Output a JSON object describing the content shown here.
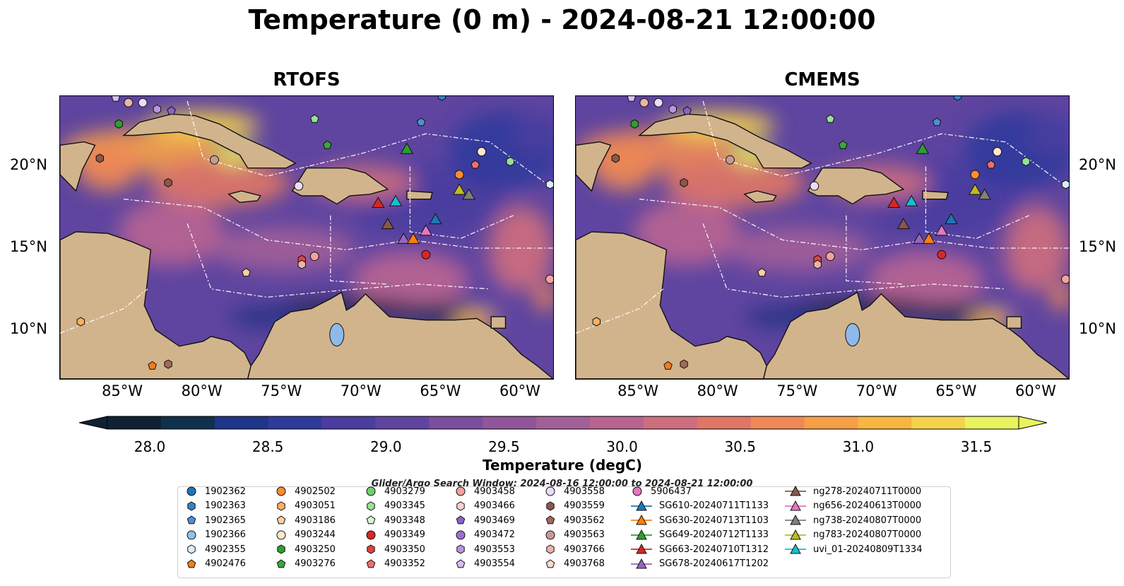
{
  "figure": {
    "title": "Temperature (0 m) - 2024-08-21 12:00:00",
    "search_window": "Glider/Argo Search Window: 2024-08-16 12:00:00 to 2024-08-21 12:00:00"
  },
  "colors": {
    "land": "#d2b48c",
    "lake": "#8fb9e8",
    "colormap": [
      "#0f2133",
      "#10304d",
      "#1f3588",
      "#2f3a9c",
      "#4a3d9f",
      "#5f45a0",
      "#7a4e9e",
      "#91559a",
      "#a25f98",
      "#b86491",
      "#cd6e7e",
      "#df7666",
      "#ee8856",
      "#f59f47",
      "#f6b641",
      "#f4d34c",
      "#e9f35f"
    ]
  },
  "chart_data": [
    {
      "type": "heatmap",
      "title": "RTOFS",
      "x_ticks": [
        "85°W",
        "80°W",
        "75°W",
        "70°W",
        "65°W",
        "60°W"
      ],
      "x_tick_values": [
        -85,
        -80,
        -75,
        -70,
        -65,
        -60
      ],
      "y_ticks": [
        "20°N",
        "15°N",
        "10°N"
      ],
      "y_tick_values": [
        20,
        15,
        10
      ],
      "xlim": [
        -89,
        -58
      ],
      "ylim": [
        7,
        24.3
      ]
    },
    {
      "type": "heatmap",
      "title": "CMEMS",
      "x_ticks": [
        "85°W",
        "80°W",
        "75°W",
        "70°W",
        "65°W",
        "60°W"
      ],
      "x_tick_values": [
        -85,
        -80,
        -75,
        -70,
        -65,
        -60
      ],
      "y_ticks": [
        "20°N",
        "15°N",
        "10°N"
      ],
      "y_tick_values": [
        20,
        15,
        10
      ],
      "xlim": [
        -89,
        -58
      ],
      "ylim": [
        7,
        24.3
      ]
    }
  ],
  "colorbar": {
    "label": "Temperature (degC)",
    "ticks": [
      "28.0",
      "28.5",
      "29.0",
      "29.5",
      "30.0",
      "30.5",
      "31.0",
      "31.5"
    ],
    "tick_values": [
      28.0,
      28.5,
      29.0,
      29.5,
      30.0,
      30.5,
      31.0,
      31.5
    ],
    "range": [
      28.0,
      31.5
    ]
  },
  "platforms": [
    {
      "name": "1902362",
      "marker": "circle",
      "color": "#1f77b4"
    },
    {
      "name": "1902363",
      "marker": "hexagon",
      "color": "#3d7fc4"
    },
    {
      "name": "1902365",
      "marker": "pentagon",
      "color": "#4f8fd8"
    },
    {
      "name": "1902366",
      "marker": "circle",
      "color": "#8fc1ea"
    },
    {
      "name": "4902355",
      "marker": "hexagon",
      "color": "#d9eefc"
    },
    {
      "name": "4902476",
      "marker": "pentagon",
      "color": "#f07f1a"
    },
    {
      "name": "4902502",
      "marker": "circle",
      "color": "#ff8c32"
    },
    {
      "name": "4903051",
      "marker": "hexagon",
      "color": "#ffae5e"
    },
    {
      "name": "4903186",
      "marker": "pentagon",
      "color": "#ffd0a0"
    },
    {
      "name": "4903244",
      "marker": "circle",
      "color": "#ffe6cc"
    },
    {
      "name": "4903250",
      "marker": "hexagon",
      "color": "#2ca02c"
    },
    {
      "name": "4903276",
      "marker": "pentagon",
      "color": "#38a838"
    },
    {
      "name": "4903279",
      "marker": "circle",
      "color": "#6fcf6f"
    },
    {
      "name": "4903345",
      "marker": "hexagon",
      "color": "#97e197"
    },
    {
      "name": "4903348",
      "marker": "pentagon",
      "color": "#d8f6cf"
    },
    {
      "name": "4903349",
      "marker": "circle",
      "color": "#d62728"
    },
    {
      "name": "4903350",
      "marker": "hexagon",
      "color": "#e0413f"
    },
    {
      "name": "4903352",
      "marker": "pentagon",
      "color": "#ef6f6c"
    },
    {
      "name": "4903458",
      "marker": "circle",
      "color": "#f6a0a0"
    },
    {
      "name": "4903466",
      "marker": "hexagon",
      "color": "#fcd0d0"
    },
    {
      "name": "4903469",
      "marker": "pentagon",
      "color": "#8a63c8"
    },
    {
      "name": "4903472",
      "marker": "circle",
      "color": "#9c6fd2"
    },
    {
      "name": "4903553",
      "marker": "hexagon",
      "color": "#b895e0"
    },
    {
      "name": "4903554",
      "marker": "pentagon",
      "color": "#d4bdf0"
    },
    {
      "name": "4903558",
      "marker": "circle",
      "color": "#eadcfb"
    },
    {
      "name": "4903559",
      "marker": "hexagon",
      "color": "#8c564b"
    },
    {
      "name": "4903562",
      "marker": "pentagon",
      "color": "#a0695c"
    },
    {
      "name": "4903563",
      "marker": "circle",
      "color": "#c49c94"
    },
    {
      "name": "4903766",
      "marker": "hexagon",
      "color": "#e8b5a8"
    },
    {
      "name": "4903768",
      "marker": "pentagon",
      "color": "#fbd9cf"
    },
    {
      "name": "5906437",
      "marker": "circle",
      "color": "#e377c2"
    },
    {
      "name": "SG610-20240711T1133",
      "marker": "triangle-line",
      "color": "#1f77b4"
    },
    {
      "name": "SG630-20240713T1103",
      "marker": "triangle-line",
      "color": "#ff7f0e"
    },
    {
      "name": "SG649-20240712T1133",
      "marker": "triangle-line",
      "color": "#2ca02c"
    },
    {
      "name": "SG663-20240710T1312",
      "marker": "triangle-line",
      "color": "#d62728"
    },
    {
      "name": "SG678-20240617T1202",
      "marker": "triangle-line",
      "color": "#9467bd"
    },
    {
      "name": "ng278-20240711T0000",
      "marker": "triangle-line",
      "color": "#8c564b"
    },
    {
      "name": "ng656-20240613T0000",
      "marker": "triangle-line",
      "color": "#e377c2"
    },
    {
      "name": "ng738-20240807T0000",
      "marker": "triangle-line",
      "color": "#7f7f7f"
    },
    {
      "name": "ng783-20240807T0000",
      "marker": "triangle-line",
      "color": "#bcbd22"
    },
    {
      "name": "uvi_01-20240809T1334",
      "marker": "triangle-line",
      "color": "#17becf"
    }
  ],
  "observations": [
    {
      "id": "4903554",
      "lon": -85.5,
      "lat": 24.2,
      "c": "#d4bdf0",
      "m": "pentagon"
    },
    {
      "id": "4903766",
      "lon": -84.7,
      "lat": 23.9,
      "c": "#e8b5a8",
      "m": "circle"
    },
    {
      "id": "4903558",
      "lon": -83.8,
      "lat": 23.9,
      "c": "#eadcfb",
      "m": "circle"
    },
    {
      "id": "4903553",
      "lon": -82.9,
      "lat": 23.5,
      "c": "#b895e0",
      "m": "hexagon"
    },
    {
      "id": "4903469",
      "lon": -82.0,
      "lat": 23.4,
      "c": "#8a63c8",
      "m": "pentagon"
    },
    {
      "id": "4903250",
      "lon": -85.3,
      "lat": 22.6,
      "c": "#2ca02c",
      "m": "hexagon"
    },
    {
      "id": "4903559",
      "lon": -86.5,
      "lat": 20.5,
      "c": "#8c564b",
      "m": "hexagon"
    },
    {
      "id": "4903563",
      "lon": -79.3,
      "lat": 20.4,
      "c": "#c49c94",
      "m": "circle"
    },
    {
      "id": "4903559b",
      "lon": -82.2,
      "lat": 19.0,
      "c": "#8c564b",
      "m": "hexagon"
    },
    {
      "id": "4903345",
      "lon": -73.0,
      "lat": 22.9,
      "c": "#97e197",
      "m": "pentagon"
    },
    {
      "id": "4903276",
      "lon": -72.2,
      "lat": 21.3,
      "c": "#38a838",
      "m": "pentagon"
    },
    {
      "id": "1902365",
      "lon": -66.3,
      "lat": 22.7,
      "c": "#4f8fd8",
      "m": "pentagon"
    },
    {
      "id": "1902363",
      "lon": -65.0,
      "lat": 24.3,
      "c": "#3d7fc4",
      "m": "hexagon"
    },
    {
      "id": "4903558b",
      "lon": -74.0,
      "lat": 18.8,
      "c": "#eadcfb",
      "m": "circle"
    },
    {
      "id": "4903244",
      "lon": -62.5,
      "lat": 20.9,
      "c": "#ffe6cc",
      "m": "circle"
    },
    {
      "id": "4903352",
      "lon": -62.9,
      "lat": 20.1,
      "c": "#ef6f6c",
      "m": "pentagon"
    },
    {
      "id": "4903345b",
      "lon": -60.7,
      "lat": 20.3,
      "c": "#97e197",
      "m": "hexagon"
    },
    {
      "id": "4902502",
      "lon": -63.9,
      "lat": 19.5,
      "c": "#ff8c32",
      "m": "circle"
    },
    {
      "id": "4902355",
      "lon": -58.2,
      "lat": 18.9,
      "c": "#d9eefc",
      "m": "hexagon"
    },
    {
      "id": "4903350",
      "lon": -73.8,
      "lat": 14.3,
      "c": "#e0413f",
      "m": "hexagon"
    },
    {
      "id": "4903766b",
      "lon": -73.8,
      "lat": 14.0,
      "c": "#e8b5a8",
      "m": "hexagon"
    },
    {
      "id": "4903458",
      "lon": -73.0,
      "lat": 14.5,
      "c": "#f6a0a0",
      "m": "circle"
    },
    {
      "id": "4903186",
      "lon": -77.3,
      "lat": 13.5,
      "c": "#ffd0a0",
      "m": "pentagon"
    },
    {
      "id": "4903349",
      "lon": -66.0,
      "lat": 14.6,
      "c": "#d62728",
      "m": "circle"
    },
    {
      "id": "4903458b",
      "lon": -58.2,
      "lat": 13.1,
      "c": "#f6a0a0",
      "m": "circle"
    },
    {
      "id": "4903051",
      "lon": -87.7,
      "lat": 10.5,
      "c": "#ffae5e",
      "m": "hexagon"
    },
    {
      "id": "4902476",
      "lon": -83.2,
      "lat": 7.8,
      "c": "#f07f1a",
      "m": "pentagon"
    },
    {
      "id": "4903562",
      "lon": -82.2,
      "lat": 7.9,
      "c": "#a0695c",
      "m": "hexagon"
    },
    {
      "id": "SG649",
      "lon": -67.2,
      "lat": 21.1,
      "c": "#2ca02c",
      "m": "triangle"
    },
    {
      "id": "ng783",
      "lon": -63.9,
      "lat": 18.6,
      "c": "#bcbd22",
      "m": "triangle"
    },
    {
      "id": "ng738",
      "lon": -63.3,
      "lat": 18.3,
      "c": "#7f7f7f",
      "m": "triangle"
    },
    {
      "id": "SG663",
      "lon": -69.0,
      "lat": 17.8,
      "c": "#d62728",
      "m": "triangle"
    },
    {
      "id": "uvi_01",
      "lon": -67.9,
      "lat": 17.9,
      "c": "#17becf",
      "m": "triangle"
    },
    {
      "id": "SG610",
      "lon": -65.4,
      "lat": 16.8,
      "c": "#1f77b4",
      "m": "triangle"
    },
    {
      "id": "ng278",
      "lon": -68.4,
      "lat": 16.5,
      "c": "#8c564b",
      "m": "triangle"
    },
    {
      "id": "ng656",
      "lon": -66.0,
      "lat": 16.1,
      "c": "#e377c2",
      "m": "triangle"
    },
    {
      "id": "SG678",
      "lon": -67.4,
      "lat": 15.6,
      "c": "#9467bd",
      "m": "triangle"
    },
    {
      "id": "SG630",
      "lon": -66.8,
      "lat": 15.6,
      "c": "#ff7f0e",
      "m": "triangle"
    }
  ]
}
